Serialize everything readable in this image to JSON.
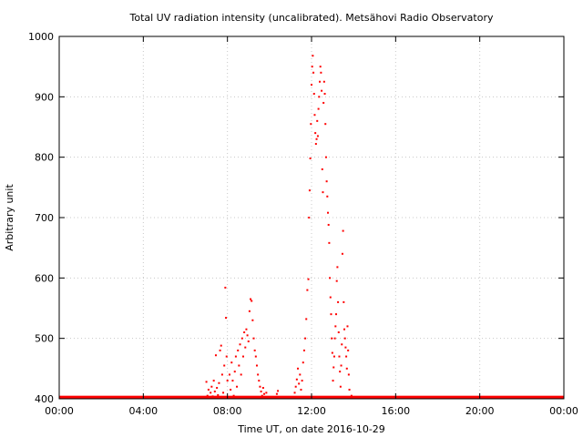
{
  "chart_data": {
    "type": "scatter",
    "title": "Total UV radiation intensity (uncalibrated). Metsähovi Radio Observatory",
    "xlabel": "Time UT, on date 2016-10-29",
    "ylabel": "Arbitrary unit",
    "x_unit": "hours",
    "xlim": [
      0,
      24
    ],
    "ylim": [
      400,
      1000
    ],
    "x_ticks": [
      0,
      4,
      8,
      12,
      16,
      20,
      24
    ],
    "x_tick_labels": [
      "00:00",
      "04:00",
      "08:00",
      "12:00",
      "16:00",
      "20:00",
      "00:00"
    ],
    "y_ticks": [
      400,
      500,
      600,
      700,
      800,
      900,
      1000
    ],
    "y_tick_labels": [
      "400",
      "500",
      "600",
      "700",
      "800",
      "900",
      "1000"
    ],
    "grid": true,
    "legend": "none",
    "series_color": "#ff0000",
    "baseline": {
      "value": 402,
      "x_start": 0,
      "x_end": 24
    },
    "points": [
      [
        7.0,
        428
      ],
      [
        7.05,
        405
      ],
      [
        7.1,
        415
      ],
      [
        7.15,
        402
      ],
      [
        7.2,
        410
      ],
      [
        7.25,
        420
      ],
      [
        7.3,
        404
      ],
      [
        7.35,
        430
      ],
      [
        7.4,
        412
      ],
      [
        7.45,
        472
      ],
      [
        7.5,
        418
      ],
      [
        7.55,
        406
      ],
      [
        7.6,
        426
      ],
      [
        7.65,
        480
      ],
      [
        7.7,
        488
      ],
      [
        7.75,
        440
      ],
      [
        7.8,
        410
      ],
      [
        7.85,
        455
      ],
      [
        7.9,
        584
      ],
      [
        7.93,
        534
      ],
      [
        7.96,
        470
      ],
      [
        8.0,
        430
      ],
      [
        8.05,
        402
      ],
      [
        8.1,
        440
      ],
      [
        8.15,
        415
      ],
      [
        8.2,
        460
      ],
      [
        8.25,
        430
      ],
      [
        8.3,
        405
      ],
      [
        8.35,
        445
      ],
      [
        8.4,
        470
      ],
      [
        8.45,
        420
      ],
      [
        8.5,
        480
      ],
      [
        8.55,
        455
      ],
      [
        8.6,
        490
      ],
      [
        8.65,
        440
      ],
      [
        8.7,
        500
      ],
      [
        8.75,
        470
      ],
      [
        8.8,
        510
      ],
      [
        8.85,
        485
      ],
      [
        8.9,
        515
      ],
      [
        8.95,
        505
      ],
      [
        9.0,
        495
      ],
      [
        9.05,
        545
      ],
      [
        9.1,
        565
      ],
      [
        9.15,
        562
      ],
      [
        9.2,
        530
      ],
      [
        9.25,
        500
      ],
      [
        9.3,
        480
      ],
      [
        9.35,
        470
      ],
      [
        9.4,
        455
      ],
      [
        9.45,
        440
      ],
      [
        9.5,
        430
      ],
      [
        9.55,
        420
      ],
      [
        9.6,
        412
      ],
      [
        9.65,
        405
      ],
      [
        9.7,
        418
      ],
      [
        9.75,
        408
      ],
      [
        9.8,
        403
      ],
      [
        9.85,
        410
      ],
      [
        9.9,
        402
      ],
      [
        10.0,
        403
      ],
      [
        10.1,
        402
      ],
      [
        10.2,
        402
      ],
      [
        10.3,
        402
      ],
      [
        10.35,
        408
      ],
      [
        10.4,
        413
      ],
      [
        10.5,
        402
      ],
      [
        10.6,
        402
      ],
      [
        11.0,
        402
      ],
      [
        11.2,
        410
      ],
      [
        11.25,
        420
      ],
      [
        11.3,
        432
      ],
      [
        11.35,
        450
      ],
      [
        11.4,
        425
      ],
      [
        11.45,
        440
      ],
      [
        11.5,
        415
      ],
      [
        11.55,
        430
      ],
      [
        11.6,
        460
      ],
      [
        11.65,
        480
      ],
      [
        11.7,
        500
      ],
      [
        11.75,
        532
      ],
      [
        11.8,
        580
      ],
      [
        11.85,
        598
      ],
      [
        11.88,
        700
      ],
      [
        11.91,
        745
      ],
      [
        11.94,
        798
      ],
      [
        11.97,
        855
      ],
      [
        12.0,
        920
      ],
      [
        12.03,
        950
      ],
      [
        12.06,
        968
      ],
      [
        12.09,
        940
      ],
      [
        12.12,
        905
      ],
      [
        12.15,
        870
      ],
      [
        12.18,
        840
      ],
      [
        12.21,
        822
      ],
      [
        12.24,
        830
      ],
      [
        12.27,
        860
      ],
      [
        12.3,
        835
      ],
      [
        12.33,
        880
      ],
      [
        12.36,
        900
      ],
      [
        12.39,
        925
      ],
      [
        12.42,
        950
      ],
      [
        12.45,
        940
      ],
      [
        12.48,
        910
      ],
      [
        12.51,
        780
      ],
      [
        12.54,
        742
      ],
      [
        12.57,
        890
      ],
      [
        12.6,
        925
      ],
      [
        12.63,
        905
      ],
      [
        12.66,
        855
      ],
      [
        12.69,
        800
      ],
      [
        12.72,
        760
      ],
      [
        12.75,
        735
      ],
      [
        12.78,
        708
      ],
      [
        12.81,
        688
      ],
      [
        12.84,
        658
      ],
      [
        12.87,
        600
      ],
      [
        12.9,
        568
      ],
      [
        12.93,
        540
      ],
      [
        12.96,
        500
      ],
      [
        12.99,
        476
      ],
      [
        13.02,
        430
      ],
      [
        13.05,
        452
      ],
      [
        13.08,
        470
      ],
      [
        13.11,
        500
      ],
      [
        13.14,
        520
      ],
      [
        13.17,
        540
      ],
      [
        13.2,
        595
      ],
      [
        13.23,
        618
      ],
      [
        13.26,
        560
      ],
      [
        13.29,
        510
      ],
      [
        13.32,
        470
      ],
      [
        13.35,
        445
      ],
      [
        13.38,
        420
      ],
      [
        13.41,
        455
      ],
      [
        13.44,
        490
      ],
      [
        13.47,
        640
      ],
      [
        13.5,
        678
      ],
      [
        13.53,
        560
      ],
      [
        13.56,
        515
      ],
      [
        13.59,
        500
      ],
      [
        13.62,
        485
      ],
      [
        13.65,
        470
      ],
      [
        13.68,
        450
      ],
      [
        13.71,
        520
      ],
      [
        13.74,
        480
      ],
      [
        13.77,
        440
      ],
      [
        13.8,
        415
      ],
      [
        13.85,
        402
      ],
      [
        13.9,
        405
      ],
      [
        13.95,
        402
      ],
      [
        14.0,
        402
      ]
    ]
  }
}
